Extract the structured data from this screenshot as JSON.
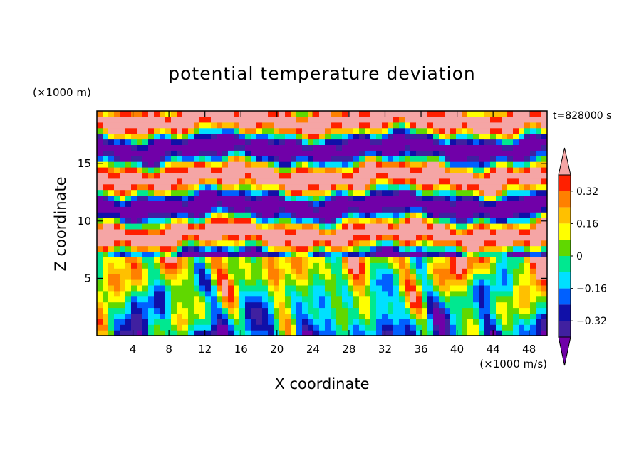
{
  "chart_data": {
    "type": "heatmap",
    "title": "potential temperature deviation",
    "xlabel": "X coordinate",
    "ylabel": "Z coordinate",
    "x_unit": "(×1000 m/s)",
    "y_unit": "(×1000 m)",
    "time_label": "t=828000 s",
    "xlim": [
      0,
      50
    ],
    "ylim": [
      0,
      19.6
    ],
    "x_ticks": [
      4,
      8,
      12,
      16,
      20,
      24,
      28,
      32,
      36,
      40,
      44,
      48
    ],
    "y_ticks": [
      5,
      10,
      15
    ],
    "colorbar": {
      "levels": [
        -0.48,
        -0.4,
        -0.32,
        -0.24,
        -0.16,
        -0.08,
        0,
        0.08,
        0.16,
        0.24,
        0.32,
        0.4
      ],
      "tick_labels": [
        "0.32",
        "0.16",
        "0",
        "−0.16",
        "−0.32"
      ],
      "tick_values": [
        0.32,
        0.16,
        0,
        -0.16,
        -0.32
      ],
      "colors": [
        "#7000a8",
        "#4020a0",
        "#1010a8",
        "#0060ff",
        "#00e0ff",
        "#00e890",
        "#60d800",
        "#ffff00",
        "#ffc000",
        "#ff8000",
        "#ff2000",
        "#f5a5a5"
      ],
      "extend": "both"
    }
  }
}
